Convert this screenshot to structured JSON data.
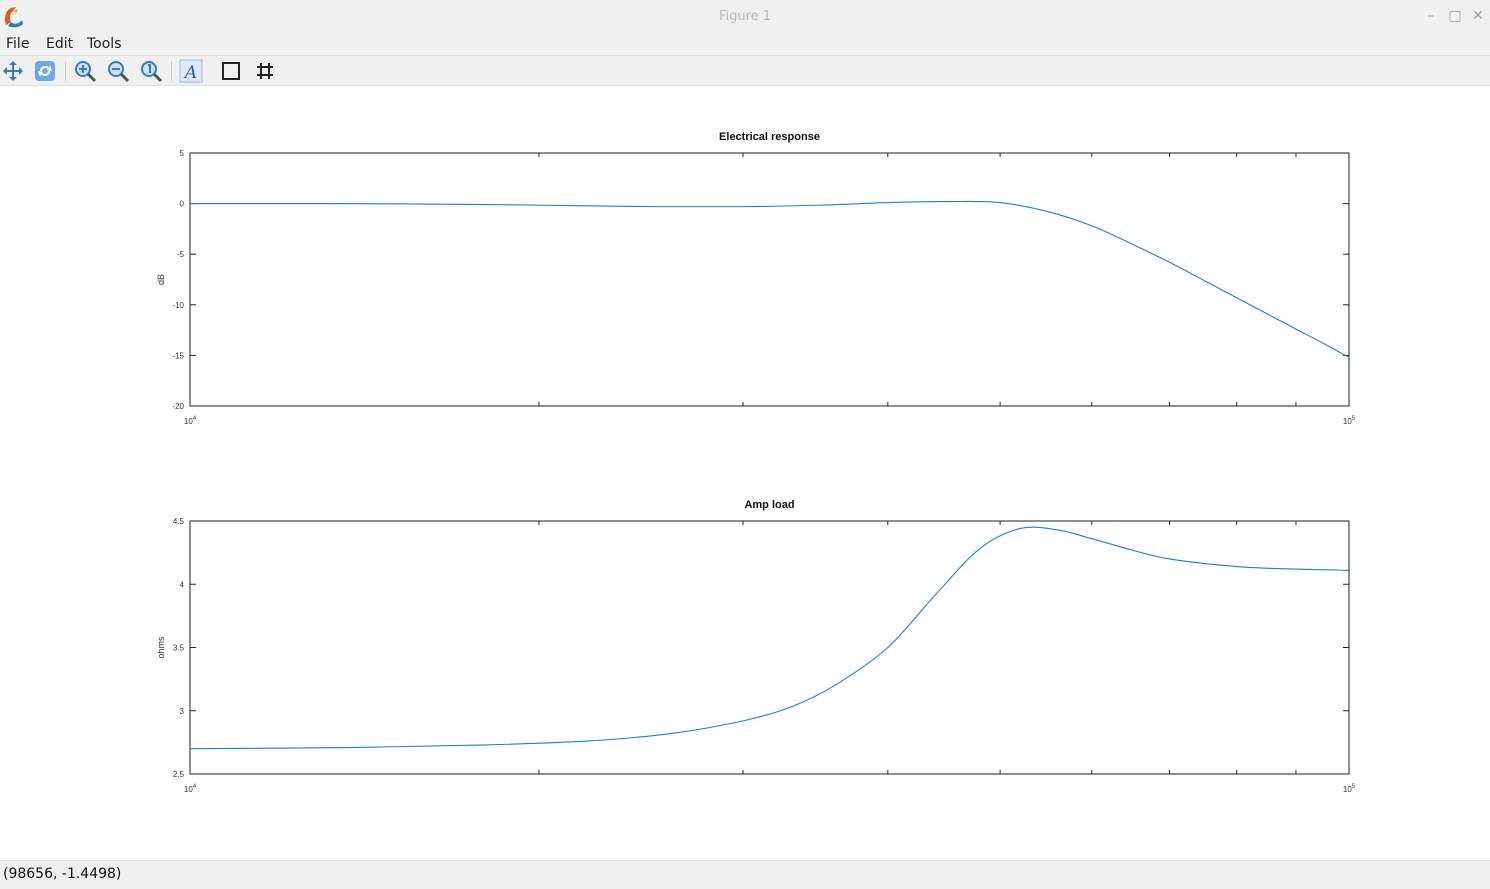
{
  "window": {
    "title": "Figure 1"
  },
  "menu": {
    "items": [
      "File",
      "Edit",
      "Tools"
    ]
  },
  "toolbar": {
    "icons": [
      "pan-icon",
      "rotate-icon",
      "zoom-in-icon",
      "zoom-out-icon",
      "zoom-reset-icon",
      "text-icon",
      "box-icon",
      "grid-icon"
    ]
  },
  "status": {
    "text": "(98656, -1.4498)"
  },
  "colors": {
    "line": "#1f7fc8",
    "accent": "#2aa6d8",
    "axis": "#222222"
  },
  "chart_data": [
    {
      "type": "line",
      "title": "Electrical response",
      "ylabel": "dB",
      "xlabel": "",
      "xscale": "log",
      "xlim": [
        10000,
        100000
      ],
      "ylim": [
        -20,
        5
      ],
      "xticks": [
        10000,
        20000,
        30000,
        40000,
        50000,
        60000,
        70000,
        80000,
        90000,
        100000
      ],
      "xtick_labels": [
        {
          "base": "10",
          "exp": "4"
        },
        {
          "base": "10",
          "exp": "5"
        }
      ],
      "ytick_labels": [
        "5",
        "0",
        "-5",
        "-10",
        "-15",
        "-20"
      ],
      "yticks": [
        5,
        0,
        -5,
        -10,
        -15,
        -20
      ],
      "x": [
        10000,
        13000,
        16000,
        20000,
        25000,
        30000,
        35000,
        40000,
        45000,
        50000,
        55000,
        60000,
        65000,
        70000,
        75000,
        80000,
        85000,
        90000,
        95000,
        100000
      ],
      "y": [
        0,
        0,
        -0.05,
        -0.15,
        -0.3,
        -0.3,
        -0.15,
        0.1,
        0.2,
        0.1,
        -0.8,
        -2.2,
        -4.0,
        -5.8,
        -7.6,
        -9.3,
        -10.9,
        -12.4,
        -13.8,
        -15.2
      ]
    },
    {
      "type": "line",
      "title": "Amp load",
      "ylabel": "ohms",
      "xlabel": "",
      "xscale": "log",
      "xlim": [
        10000,
        100000
      ],
      "ylim": [
        2.5,
        4.5
      ],
      "xticks": [
        10000,
        20000,
        30000,
        40000,
        50000,
        60000,
        70000,
        80000,
        90000,
        100000
      ],
      "xtick_labels": [
        {
          "base": "10",
          "exp": "4"
        },
        {
          "base": "10",
          "exp": "5"
        }
      ],
      "ytick_labels": [
        "4.5",
        "4",
        "3.5",
        "3",
        "2.5"
      ],
      "yticks": [
        4.5,
        4,
        3.5,
        3,
        2.5
      ],
      "x": [
        10000,
        14000,
        18000,
        22000,
        26000,
        30000,
        33000,
        36000,
        40000,
        44000,
        48000,
        52000,
        56000,
        60000,
        65000,
        70000,
        80000,
        90000,
        100000
      ],
      "y": [
        2.7,
        2.71,
        2.73,
        2.76,
        2.82,
        2.92,
        3.03,
        3.2,
        3.5,
        3.92,
        4.28,
        4.44,
        4.43,
        4.36,
        4.27,
        4.2,
        4.14,
        4.12,
        4.11
      ]
    }
  ]
}
